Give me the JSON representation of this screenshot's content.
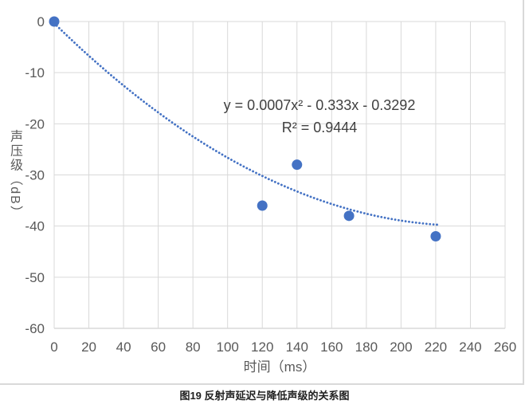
{
  "caption": "图19 反射声延迟与降低声级的关系图",
  "chart": {
    "y_axis_title": "声压级（dB）",
    "x_axis_title": "时间（ms）",
    "equation_line1": "y = 0.0007x² - 0.333x - 0.3292",
    "equation_line2": "R² = 0.9444"
  },
  "chart_data": {
    "type": "scatter",
    "title": "图19 反射声延迟与降低声级的关系图",
    "xlabel": "时间（ms）",
    "ylabel": "声压级（dB）",
    "points": [
      {
        "x": 0,
        "y": 0
      },
      {
        "x": 120,
        "y": -36
      },
      {
        "x": 140,
        "y": -28
      },
      {
        "x": 170,
        "y": -38
      },
      {
        "x": 220,
        "y": -42
      }
    ],
    "trendline": {
      "style": "dotted",
      "equation": "y = 0.0007x² - 0.333x - 0.3292",
      "r_squared": 0.9444,
      "coefficients": {
        "a": 0.0007,
        "b": -0.333,
        "c": -0.3292
      },
      "x_range": [
        0,
        222
      ]
    },
    "xlim": [
      0,
      260
    ],
    "ylim": [
      -60,
      0
    ],
    "x_ticks": [
      0,
      20,
      40,
      60,
      80,
      100,
      120,
      140,
      160,
      180,
      200,
      220,
      240,
      260
    ],
    "y_ticks": [
      0,
      -10,
      -20,
      -30,
      -40,
      -50,
      -60
    ],
    "grid": true,
    "legend": false,
    "colors": {
      "marker": "#4472C4",
      "trendline": "#4472C4",
      "gridline": "#D9D9D9",
      "axis_line": "#C6C6C6",
      "tick_text": "#595959",
      "axis_title_text": "#595959",
      "equation_text": "#404040",
      "caption_text": "#1F1F1F"
    }
  }
}
